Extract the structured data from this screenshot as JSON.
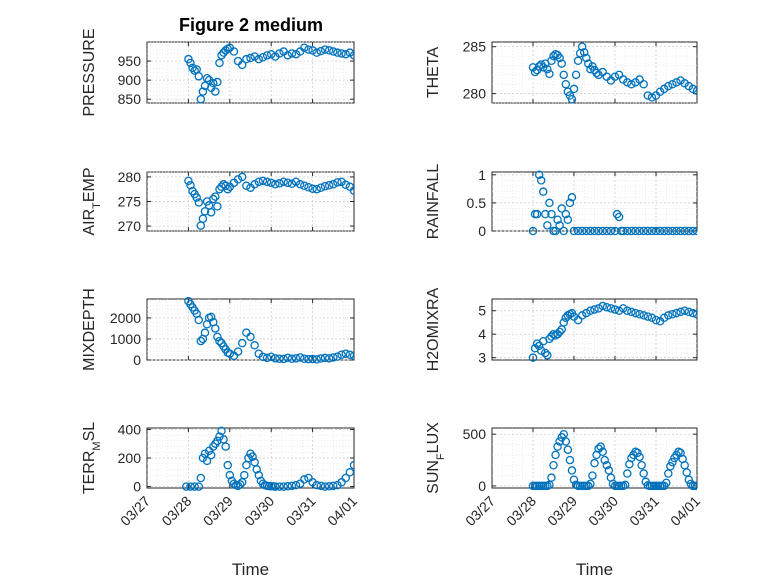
{
  "figure": {
    "title": "Figure 2 medium",
    "xlabel": "Time"
  },
  "colors": {
    "marker": "#0072BD"
  },
  "chart_data": [
    {
      "type": "scatter",
      "panel": "left-1",
      "ylabel": "PRESSURE",
      "ylim": [
        840,
        1000
      ],
      "yticks": [
        850,
        900,
        950
      ],
      "xticklabels": [],
      "x": [
        28.0,
        28.05,
        28.1,
        28.15,
        28.2,
        28.25,
        28.3,
        28.35,
        28.4,
        28.45,
        28.5,
        28.55,
        28.6,
        28.65,
        28.7,
        28.75,
        28.8,
        28.85,
        28.9,
        28.95,
        29.0,
        29.1,
        29.2,
        29.3,
        29.4,
        29.5,
        29.6,
        29.7,
        29.8,
        29.9,
        30.0,
        30.1,
        30.2,
        30.3,
        30.4,
        30.5,
        30.6,
        30.7,
        30.8,
        30.9,
        31.0,
        31.1,
        31.2,
        31.3,
        31.4,
        31.5,
        31.6,
        31.7,
        31.8,
        31.9,
        32.0
      ],
      "y": [
        955,
        945,
        932,
        925,
        928,
        910,
        850,
        870,
        885,
        905,
        900,
        880,
        892,
        870,
        895,
        945,
        965,
        972,
        978,
        982,
        985,
        975,
        950,
        940,
        955,
        958,
        962,
        955,
        960,
        965,
        968,
        962,
        970,
        975,
        965,
        970,
        968,
        975,
        985,
        980,
        978,
        972,
        976,
        980,
        978,
        975,
        972,
        970,
        968,
        972,
        965
      ]
    },
    {
      "type": "scatter",
      "panel": "right-1",
      "ylabel": "THETA",
      "ylim": [
        279,
        285.5
      ],
      "yticks": [
        280,
        285
      ],
      "xticklabels": [],
      "x": [
        28.0,
        28.05,
        28.1,
        28.15,
        28.2,
        28.25,
        28.3,
        28.35,
        28.4,
        28.45,
        28.5,
        28.55,
        28.6,
        28.65,
        28.7,
        28.75,
        28.8,
        28.85,
        28.9,
        28.95,
        29.0,
        29.05,
        29.1,
        29.15,
        29.2,
        29.25,
        29.3,
        29.35,
        29.4,
        29.45,
        29.5,
        29.55,
        29.6,
        29.7,
        29.8,
        29.9,
        30.0,
        30.1,
        30.2,
        30.3,
        30.4,
        30.5,
        30.6,
        30.7,
        30.8,
        30.9,
        31.0,
        31.1,
        31.2,
        31.3,
        31.4,
        31.5,
        31.6,
        31.7,
        31.8,
        31.9,
        32.0
      ],
      "y": [
        282.8,
        282.3,
        282.5,
        282.9,
        283.1,
        282.8,
        283.2,
        282.6,
        282.1,
        283.5,
        284.0,
        284.2,
        284.1,
        283.8,
        283.2,
        282.0,
        281.0,
        280.2,
        279.8,
        279.4,
        280.5,
        282.0,
        283.5,
        284.3,
        285.0,
        284.4,
        283.8,
        283.2,
        282.6,
        282.9,
        282.5,
        282.2,
        282.0,
        282.3,
        281.8,
        281.4,
        281.8,
        282.0,
        281.5,
        281.2,
        281.0,
        281.2,
        281.5,
        281.0,
        279.8,
        279.6,
        279.8,
        280.2,
        280.5,
        280.8,
        281.0,
        281.2,
        281.4,
        281.1,
        280.8,
        280.5,
        280.3
      ]
    },
    {
      "type": "scatter",
      "panel": "left-2",
      "ylabel": "AIR_TEMP",
      "ylim": [
        269,
        281
      ],
      "yticks": [
        270,
        275,
        280
      ],
      "xticklabels": [],
      "x": [
        28.0,
        28.05,
        28.1,
        28.15,
        28.2,
        28.25,
        28.3,
        28.35,
        28.4,
        28.45,
        28.5,
        28.55,
        28.6,
        28.65,
        28.7,
        28.75,
        28.8,
        28.85,
        28.9,
        28.95,
        29.0,
        29.1,
        29.2,
        29.3,
        29.4,
        29.5,
        29.6,
        29.7,
        29.8,
        29.9,
        30.0,
        30.1,
        30.2,
        30.3,
        30.4,
        30.5,
        30.6,
        30.7,
        30.8,
        30.9,
        31.0,
        31.1,
        31.2,
        31.3,
        31.4,
        31.5,
        31.6,
        31.7,
        31.8,
        31.9,
        32.0
      ],
      "y": [
        279.2,
        278.3,
        277.1,
        276.5,
        275.8,
        274.8,
        270.1,
        271.5,
        273.0,
        275.0,
        274.2,
        272.8,
        275.5,
        276.0,
        274.0,
        277.5,
        278.0,
        278.5,
        278.2,
        277.5,
        278.0,
        278.8,
        279.5,
        280.0,
        278.2,
        277.8,
        278.5,
        279.0,
        279.2,
        279.0,
        278.8,
        278.5,
        278.7,
        279.0,
        278.8,
        278.6,
        279.0,
        278.5,
        278.2,
        277.9,
        277.6,
        277.5,
        277.8,
        278.1,
        278.3,
        278.5,
        278.9,
        279.0,
        278.4,
        278.0,
        277.2
      ]
    },
    {
      "type": "scatter",
      "panel": "right-2",
      "ylabel": "RAINFALL",
      "ylim": [
        0,
        1.05
      ],
      "yticks": [
        0,
        0.5,
        1
      ],
      "yticklabels": [
        "0",
        "0.5",
        "1"
      ],
      "xticklabels": [],
      "x": [
        28.0,
        28.05,
        28.1,
        28.15,
        28.2,
        28.25,
        28.3,
        28.35,
        28.4,
        28.45,
        28.5,
        28.55,
        28.6,
        28.65,
        28.7,
        28.75,
        28.8,
        28.85,
        28.9,
        28.95,
        29.0,
        29.1,
        29.2,
        29.3,
        29.4,
        29.5,
        29.6,
        29.7,
        29.8,
        29.9,
        30.0,
        30.05,
        30.1,
        30.15,
        30.2,
        30.3,
        30.4,
        30.5,
        30.6,
        30.7,
        30.8,
        30.9,
        31.0,
        31.1,
        31.2,
        31.3,
        31.4,
        31.5,
        31.6,
        31.7,
        31.8,
        31.9,
        32.0
      ],
      "y": [
        0,
        0.3,
        0.3,
        1.0,
        0.9,
        0.7,
        0.3,
        0.1,
        0.5,
        0.3,
        0,
        0,
        0.2,
        0.1,
        0.4,
        0,
        0.3,
        0.2,
        0.5,
        0.6,
        0,
        0,
        0,
        0,
        0,
        0,
        0,
        0,
        0,
        0,
        0,
        0.3,
        0.25,
        0,
        0,
        0,
        0,
        0,
        0,
        0,
        0,
        0,
        0,
        0,
        0,
        0,
        0,
        0,
        0,
        0,
        0,
        0,
        0
      ]
    },
    {
      "type": "scatter",
      "panel": "left-3",
      "ylabel": "MIXDEPTH",
      "ylim": [
        0,
        2900
      ],
      "yticks": [
        0,
        1000,
        2000
      ],
      "xticklabels": [],
      "x": [
        28.0,
        28.05,
        28.1,
        28.15,
        28.2,
        28.25,
        28.3,
        28.35,
        28.4,
        28.45,
        28.5,
        28.55,
        28.6,
        28.65,
        28.7,
        28.75,
        28.8,
        28.85,
        28.9,
        28.95,
        29.0,
        29.1,
        29.2,
        29.3,
        29.4,
        29.5,
        29.6,
        29.7,
        29.8,
        29.9,
        30.0,
        30.1,
        30.2,
        30.3,
        30.4,
        30.5,
        30.6,
        30.7,
        30.8,
        30.9,
        31.0,
        31.1,
        31.2,
        31.3,
        31.4,
        31.5,
        31.6,
        31.7,
        31.8,
        31.9,
        32.0
      ],
      "y": [
        2800,
        2650,
        2500,
        2350,
        2200,
        1900,
        900,
        1000,
        1300,
        1700,
        2000,
        2050,
        1800,
        1500,
        1100,
        900,
        800,
        650,
        500,
        350,
        300,
        200,
        400,
        800,
        1300,
        1100,
        700,
        300,
        150,
        100,
        150,
        80,
        60,
        50,
        100,
        60,
        80,
        120,
        60,
        40,
        50,
        30,
        70,
        100,
        80,
        120,
        160,
        250,
        300,
        250,
        200
      ]
    },
    {
      "type": "scatter",
      "panel": "right-3",
      "ylabel": "H2OMIXRA",
      "ylim": [
        2.9,
        5.5
      ],
      "yticks": [
        3,
        4,
        5
      ],
      "xticklabels": [],
      "x": [
        28.0,
        28.05,
        28.1,
        28.15,
        28.2,
        28.25,
        28.3,
        28.35,
        28.4,
        28.45,
        28.5,
        28.55,
        28.6,
        28.65,
        28.7,
        28.75,
        28.8,
        28.85,
        28.9,
        28.95,
        29.0,
        29.1,
        29.2,
        29.3,
        29.4,
        29.5,
        29.6,
        29.7,
        29.8,
        29.9,
        30.0,
        30.1,
        30.2,
        30.3,
        30.4,
        30.5,
        30.6,
        30.7,
        30.8,
        30.9,
        31.0,
        31.1,
        31.2,
        31.3,
        31.4,
        31.5,
        31.6,
        31.7,
        31.8,
        31.9,
        32.0
      ],
      "y": [
        3.0,
        3.4,
        3.6,
        3.5,
        3.3,
        3.7,
        3.2,
        3.1,
        3.8,
        3.9,
        4.0,
        3.95,
        4.0,
        4.1,
        4.2,
        4.5,
        4.7,
        4.8,
        4.85,
        4.9,
        4.75,
        4.6,
        4.8,
        4.9,
        5.0,
        5.05,
        5.1,
        5.2,
        5.15,
        5.1,
        5.05,
        5.0,
        5.1,
        5.0,
        4.95,
        4.9,
        4.85,
        4.8,
        4.75,
        4.7,
        4.6,
        4.55,
        4.7,
        4.8,
        4.85,
        4.9,
        4.95,
        5.0,
        4.95,
        4.9,
        4.85
      ]
    },
    {
      "type": "scatter",
      "panel": "left-4",
      "ylabel": "TERR_MSL",
      "ylim": [
        -10,
        410
      ],
      "yticks": [
        0,
        200,
        400
      ],
      "xticklabels": [
        "03/27",
        "03/28",
        "03/29",
        "03/30",
        "03/31",
        "04/01"
      ],
      "x": [
        27.95,
        28.05,
        28.15,
        28.25,
        28.3,
        28.35,
        28.4,
        28.45,
        28.5,
        28.55,
        28.6,
        28.65,
        28.7,
        28.75,
        28.8,
        28.85,
        28.9,
        28.95,
        29.0,
        29.05,
        29.1,
        29.15,
        29.2,
        29.25,
        29.3,
        29.35,
        29.4,
        29.45,
        29.5,
        29.55,
        29.6,
        29.65,
        29.7,
        29.75,
        29.8,
        29.85,
        29.9,
        29.95,
        30.0,
        30.05,
        30.1,
        30.2,
        30.3,
        30.4,
        30.5,
        30.6,
        30.7,
        30.8,
        30.9,
        31.0,
        31.1,
        31.2,
        31.3,
        31.4,
        31.5,
        31.6,
        31.7,
        31.8,
        31.9,
        32.0
      ],
      "y": [
        0,
        0,
        0,
        0,
        60,
        200,
        230,
        180,
        250,
        220,
        280,
        300,
        320,
        350,
        390,
        330,
        280,
        150,
        80,
        40,
        20,
        10,
        5,
        15,
        30,
        80,
        150,
        200,
        230,
        210,
        170,
        120,
        80,
        40,
        20,
        10,
        5,
        3,
        2,
        1,
        0,
        0,
        0,
        2,
        5,
        10,
        20,
        50,
        60,
        30,
        10,
        5,
        0,
        2,
        5,
        10,
        30,
        60,
        100,
        150
      ]
    },
    {
      "type": "scatter",
      "panel": "right-4",
      "ylabel": "SUN_FLUX",
      "ylim": [
        -20,
        560
      ],
      "yticks": [
        0,
        500
      ],
      "xticklabels": [
        "03/27",
        "03/28",
        "03/29",
        "03/30",
        "03/31",
        "04/01"
      ],
      "x": [
        28.0,
        28.05,
        28.1,
        28.15,
        28.2,
        28.25,
        28.3,
        28.35,
        28.4,
        28.45,
        28.5,
        28.55,
        28.6,
        28.65,
        28.7,
        28.75,
        28.8,
        28.85,
        28.9,
        28.95,
        29.0,
        29.05,
        29.1,
        29.15,
        29.2,
        29.25,
        29.3,
        29.35,
        29.4,
        29.45,
        29.5,
        29.55,
        29.6,
        29.65,
        29.7,
        29.75,
        29.8,
        29.85,
        29.9,
        29.95,
        30.0,
        30.05,
        30.1,
        30.15,
        30.2,
        30.25,
        30.3,
        30.35,
        30.4,
        30.45,
        30.5,
        30.55,
        30.6,
        30.65,
        30.7,
        30.75,
        30.8,
        30.85,
        30.9,
        30.95,
        31.0,
        31.05,
        31.1,
        31.15,
        31.2,
        31.25,
        31.3,
        31.35,
        31.4,
        31.45,
        31.5,
        31.55,
        31.6,
        31.65,
        31.7,
        31.75,
        31.8,
        31.85,
        31.9,
        31.95,
        32.0
      ],
      "y": [
        0,
        0,
        0,
        0,
        0,
        0,
        0,
        0,
        10,
        80,
        200,
        300,
        380,
        430,
        470,
        500,
        430,
        350,
        250,
        150,
        60,
        10,
        0,
        0,
        0,
        0,
        0,
        0,
        20,
        100,
        220,
        300,
        360,
        380,
        330,
        250,
        200,
        150,
        80,
        20,
        0,
        0,
        0,
        0,
        0,
        10,
        120,
        210,
        270,
        300,
        330,
        320,
        280,
        200,
        120,
        40,
        5,
        0,
        0,
        0,
        0,
        0,
        0,
        0,
        0,
        30,
        120,
        190,
        230,
        270,
        300,
        330,
        320,
        260,
        200,
        130,
        60,
        20,
        0,
        0,
        0
      ]
    }
  ]
}
